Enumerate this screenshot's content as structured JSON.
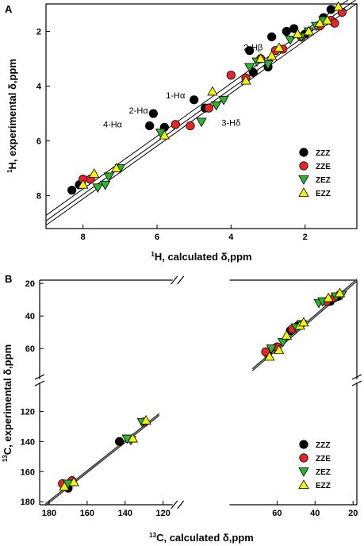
{
  "chart_data": [
    {
      "panel": "A",
      "type": "scatter",
      "xlabel_pre": "1",
      "xlabel": "H, calculated δ,ppm",
      "ylabel_pre": "1",
      "ylabel": "H, experimental δ,ppm",
      "xlim": [
        9.0,
        0.6
      ],
      "ylim": [
        1.0,
        9.2
      ],
      "xticks": [
        8,
        6,
        4,
        2
      ],
      "yticks": [
        2,
        4,
        6,
        8
      ],
      "fit_lines": [
        [
          [
            9.0,
            8.72
          ],
          [
            0.6,
            0.62
          ]
        ],
        [
          [
            9.0,
            8.92
          ],
          [
            0.6,
            0.82
          ]
        ],
        [
          [
            9.0,
            9.08
          ],
          [
            0.6,
            0.98
          ]
        ]
      ],
      "legend": [
        "ZZZ",
        "ZZE",
        "ZEZ",
        "EZZ"
      ],
      "annotations": [
        {
          "text": "1-Hα",
          "x": 5.5,
          "y": 4.45
        },
        {
          "text": "2-Hα",
          "x": 6.5,
          "y": 5.0
        },
        {
          "text": "4-Hα",
          "x": 7.2,
          "y": 5.5
        },
        {
          "text": "3-Hδ",
          "x": 4.0,
          "y": 5.45
        },
        {
          "text": "2-Hβ",
          "x": 3.4,
          "y": 2.7
        }
      ],
      "series": [
        {
          "name": "ZZZ",
          "marker": "circle",
          "color": "#000000",
          "x": [
            8.3,
            8.1,
            6.1,
            5.8,
            5.0,
            6.2,
            4.7,
            3.4,
            3.5,
            3.0,
            2.9,
            2.5,
            2.3,
            2.0,
            1.5,
            1.3
          ],
          "y": [
            7.8,
            7.6,
            5.0,
            5.5,
            4.5,
            5.45,
            4.8,
            3.5,
            2.7,
            3.3,
            2.2,
            2.0,
            1.9,
            2.1,
            1.5,
            1.2
          ]
        },
        {
          "name": "ZZE",
          "marker": "circle",
          "color": "#e8262a",
          "x": [
            8.0,
            7.8,
            5.5,
            5.1,
            4.6,
            4.0,
            3.6,
            3.2,
            2.8,
            2.6,
            2.1,
            1.6,
            1.3,
            1.2,
            1.0
          ],
          "y": [
            7.4,
            7.4,
            5.4,
            5.45,
            4.8,
            3.6,
            3.7,
            3.0,
            2.7,
            2.65,
            2.2,
            1.8,
            1.6,
            1.7,
            1.3
          ]
        },
        {
          "name": "ZEZ",
          "marker": "triangle-down",
          "color": "#2db52d",
          "x": [
            7.6,
            7.4,
            7.3,
            7.0,
            5.9,
            4.8,
            4.4,
            4.2,
            3.5,
            3.3,
            3.0,
            2.4,
            2.1,
            1.9,
            1.7,
            1.5
          ],
          "y": [
            7.7,
            7.6,
            7.3,
            7.0,
            5.7,
            5.3,
            4.7,
            4.5,
            3.3,
            3.1,
            3.2,
            2.3,
            2.2,
            2.0,
            1.8,
            1.6
          ]
        },
        {
          "name": "EZZ",
          "marker": "triangle-up",
          "color": "#f4f40a",
          "x": [
            8.0,
            7.7,
            7.1,
            5.8,
            4.5,
            3.6,
            3.2,
            2.9,
            2.7,
            2.2,
            1.9,
            1.6,
            1.4,
            1.1
          ],
          "y": [
            7.6,
            7.2,
            7.0,
            5.8,
            4.2,
            3.8,
            3.0,
            2.9,
            2.6,
            2.1,
            2.0,
            1.7,
            1.6,
            1.1
          ]
        }
      ]
    },
    {
      "panel": "B",
      "type": "scatter",
      "xlabel_pre": "13",
      "xlabel": "C, calculated δ,ppm",
      "ylabel_pre": "13",
      "ylabel": "C, experimental δ,ppm",
      "xlim": [
        185,
        18
      ],
      "ylim_upper": [
        18,
        75
      ],
      "ylim_lower": [
        105,
        182
      ],
      "xbreak": [
        120,
        80
      ],
      "xticks": [
        180,
        160,
        140,
        120,
        60,
        40,
        20
      ],
      "yticks": [
        20,
        40,
        60,
        120,
        140,
        160,
        180
      ],
      "legend": [
        "ZZZ",
        "ZZE",
        "ZEZ",
        "EZZ"
      ],
      "series": [
        {
          "name": "ZZZ",
          "marker": "circle",
          "color": "#000000",
          "x": [
            170,
            143,
            65,
            53,
            49,
            32,
            28
          ],
          "y": [
            171,
            140,
            63,
            49,
            46,
            31,
            28
          ]
        },
        {
          "name": "ZZE",
          "marker": "circle",
          "color": "#e8262a",
          "x": [
            173,
            168,
            130,
            66,
            60,
            52,
            34,
            30
          ],
          "y": [
            168,
            166,
            127,
            62,
            59,
            48,
            31,
            29
          ]
        },
        {
          "name": "ZEZ",
          "marker": "triangle-down",
          "color": "#2db52d",
          "x": [
            170,
            137,
            139,
            131,
            63,
            57,
            50,
            47,
            38,
            36,
            29,
            26
          ],
          "y": [
            168,
            139,
            138,
            127,
            60,
            56,
            47,
            45,
            32,
            31,
            28,
            27
          ]
        },
        {
          "name": "EZZ",
          "marker": "triangle-up",
          "color": "#f4f40a",
          "x": [
            172,
            167,
            136,
            129,
            64,
            59,
            55,
            48,
            46,
            33,
            27
          ],
          "y": [
            170,
            167,
            138,
            126,
            65,
            61,
            52,
            46,
            44,
            29,
            26
          ]
        }
      ]
    }
  ]
}
